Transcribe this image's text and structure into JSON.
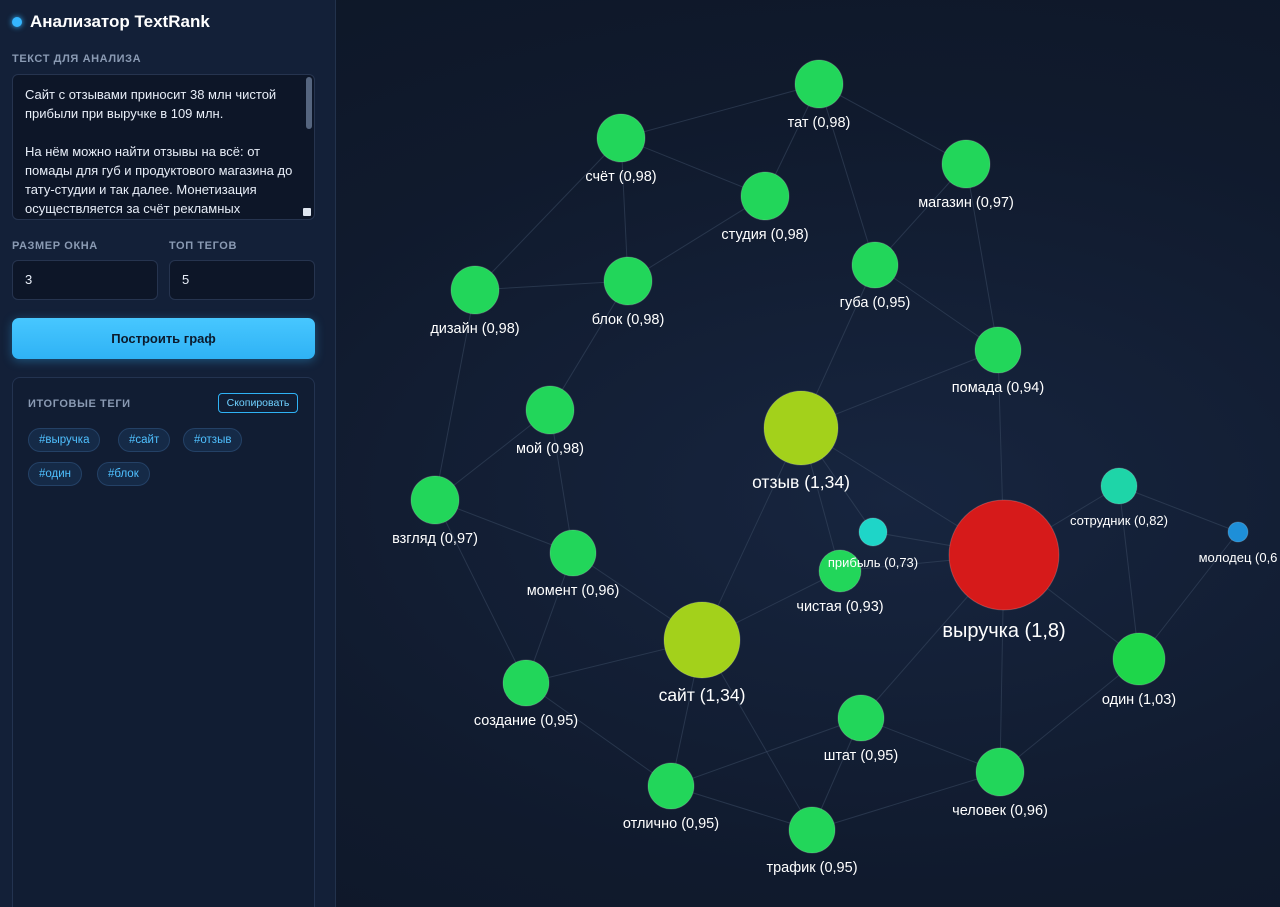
{
  "app": {
    "title": "Анализатор TextRank"
  },
  "text_section": {
    "label": "ТЕКСТ ДЛЯ АНАЛИЗА",
    "value": "Сайт с отзывами приносит 38 млн чистой прибыли при выручке в 109 млн.\n\nНа нём можно найти отзывы на всё: от помады для губ и продуктового магазина до тату-студии и так далее. Монетизация осуществляется за счёт рекламных"
  },
  "settings": {
    "window_label": "РАЗМЕР ОКНА",
    "window_value": "3",
    "top_label": "ТОП ТЕГОВ",
    "top_value": "5"
  },
  "build_button": "Построить граф",
  "results": {
    "title": "ИТОГОВЫЕ ТЕГИ",
    "copy_button": "Скопировать",
    "tags": [
      "#выручка",
      "#сайт",
      "#отзыв",
      "#один",
      "#блок"
    ]
  },
  "colors": {
    "accent": "#35b6ff",
    "node_green": "#22d65a",
    "node_lime": "#a3d11b",
    "node_red": "#d61a1a",
    "node_teal": "#1ed5c8",
    "node_blue": "#1e8fd8",
    "edge": "#3a4a63"
  },
  "graph": {
    "nodes": [
      {
        "id": "тат",
        "label": "тат (0,98)",
        "score": 0.98,
        "color": "#22d65a"
      },
      {
        "id": "счёт",
        "label": "счёт (0,98)",
        "score": 0.98,
        "color": "#22d65a"
      },
      {
        "id": "магазин",
        "label": "магазин (0,97)",
        "score": 0.97,
        "color": "#22d65a"
      },
      {
        "id": "студия",
        "label": "студия (0,98)",
        "score": 0.98,
        "color": "#22d65a"
      },
      {
        "id": "губа",
        "label": "губа (0,95)",
        "score": 0.95,
        "color": "#22d65a"
      },
      {
        "id": "дизайн",
        "label": "дизайн (0,98)",
        "score": 0.98,
        "color": "#22d65a"
      },
      {
        "id": "блок",
        "label": "блок (0,98)",
        "score": 0.98,
        "color": "#22d65a"
      },
      {
        "id": "помада",
        "label": "помада (0,94)",
        "score": 0.94,
        "color": "#22d65a"
      },
      {
        "id": "мой",
        "label": "мой (0,98)",
        "score": 0.98,
        "color": "#22d65a"
      },
      {
        "id": "отзыв",
        "label": "отзыв (1,34)",
        "score": 1.34,
        "color": "#a3d11b"
      },
      {
        "id": "взгляд",
        "label": "взгляд (0,97)",
        "score": 0.97,
        "color": "#22d65a"
      },
      {
        "id": "сотрудник",
        "label": "сотрудник (0,82)",
        "score": 0.82,
        "color": "#1ed5a8"
      },
      {
        "id": "молодец",
        "label": "молодец (0,6",
        "score": 0.6,
        "color": "#1e8fd8"
      },
      {
        "id": "прибыль",
        "label": "прибыль (0,73)",
        "score": 0.73,
        "color": "#1ed5c8"
      },
      {
        "id": "выручка",
        "label": "выручка (1,8)",
        "score": 1.8,
        "color": "#d61a1a"
      },
      {
        "id": "момент",
        "label": "момент (0,96)",
        "score": 0.96,
        "color": "#22d65a"
      },
      {
        "id": "чистая",
        "label": "чистая (0,93)",
        "score": 0.93,
        "color": "#22d65a"
      },
      {
        "id": "сайт",
        "label": "сайт (1,34)",
        "score": 1.34,
        "color": "#a3d11b"
      },
      {
        "id": "один",
        "label": "один (1,03)",
        "score": 1.03,
        "color": "#1ed64a"
      },
      {
        "id": "создание",
        "label": "создание (0,95)",
        "score": 0.95,
        "color": "#22d65a"
      },
      {
        "id": "штат",
        "label": "штат (0,95)",
        "score": 0.95,
        "color": "#22d65a"
      },
      {
        "id": "человек",
        "label": "человек (0,96)",
        "score": 0.96,
        "color": "#22d65a"
      },
      {
        "id": "отлично",
        "label": "отлично (0,95)",
        "score": 0.95,
        "color": "#22d65a"
      },
      {
        "id": "трафик",
        "label": "трафик (0,95)",
        "score": 0.95,
        "color": "#22d65a"
      }
    ],
    "edges": [
      [
        "тат",
        "счёт"
      ],
      [
        "тат",
        "магазин"
      ],
      [
        "тат",
        "студия"
      ],
      [
        "тат",
        "губа"
      ],
      [
        "счёт",
        "студия"
      ],
      [
        "счёт",
        "блок"
      ],
      [
        "счёт",
        "дизайн"
      ],
      [
        "магазин",
        "губа"
      ],
      [
        "магазин",
        "помада"
      ],
      [
        "студия",
        "блок"
      ],
      [
        "губа",
        "помада"
      ],
      [
        "губа",
        "отзыв"
      ],
      [
        "дизайн",
        "блок"
      ],
      [
        "дизайн",
        "взгляд"
      ],
      [
        "блок",
        "мой"
      ],
      [
        "мой",
        "взгляд"
      ],
      [
        "мой",
        "момент"
      ],
      [
        "помада",
        "отзыв"
      ],
      [
        "помада",
        "выручка"
      ],
      [
        "отзыв",
        "выручка"
      ],
      [
        "отзыв",
        "прибыль"
      ],
      [
        "отзыв",
        "сайт"
      ],
      [
        "отзыв",
        "чистая"
      ],
      [
        "взгляд",
        "момент"
      ],
      [
        "взгляд",
        "создание"
      ],
      [
        "прибыль",
        "выручка"
      ],
      [
        "чистая",
        "выручка"
      ],
      [
        "чистая",
        "сайт"
      ],
      [
        "выручка",
        "сотрудник"
      ],
      [
        "выручка",
        "один"
      ],
      [
        "выручка",
        "штат"
      ],
      [
        "выручка",
        "человек"
      ],
      [
        "сотрудник",
        "молодец"
      ],
      [
        "сотрудник",
        "один"
      ],
      [
        "молодец",
        "один"
      ],
      [
        "момент",
        "сайт"
      ],
      [
        "момент",
        "создание"
      ],
      [
        "сайт",
        "создание"
      ],
      [
        "сайт",
        "отлично"
      ],
      [
        "сайт",
        "трафик"
      ],
      [
        "создание",
        "отлично"
      ],
      [
        "штат",
        "отлично"
      ],
      [
        "штат",
        "трафик"
      ],
      [
        "штат",
        "человек"
      ],
      [
        "отлично",
        "трафик"
      ],
      [
        "трафик",
        "человек"
      ],
      [
        "один",
        "человек"
      ]
    ]
  }
}
